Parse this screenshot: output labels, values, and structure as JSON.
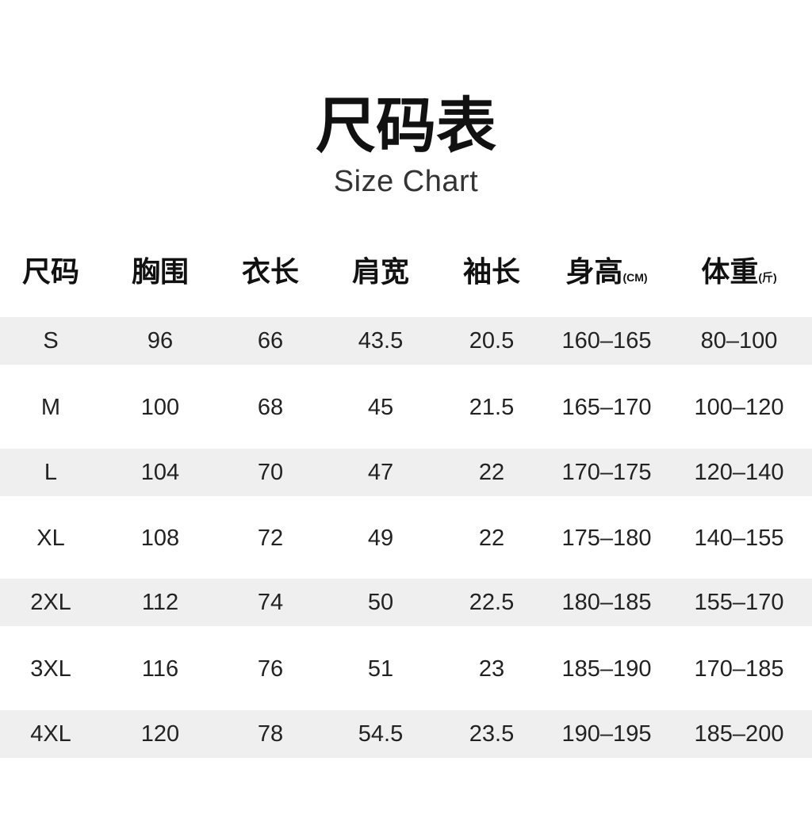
{
  "title": "尺码表",
  "subtitle": "Size Chart",
  "table": {
    "headers": [
      {
        "label": "尺码",
        "unit": ""
      },
      {
        "label": "胸围",
        "unit": ""
      },
      {
        "label": "衣长",
        "unit": ""
      },
      {
        "label": "肩宽",
        "unit": ""
      },
      {
        "label": "袖长",
        "unit": ""
      },
      {
        "label": "身高",
        "unit": "(CM)"
      },
      {
        "label": "体重",
        "unit": "(斤)"
      }
    ],
    "rows": [
      [
        "S",
        "96",
        "66",
        "43.5",
        "20.5",
        "160–165",
        "80–100"
      ],
      [
        "M",
        "100",
        "68",
        "45",
        "21.5",
        "165–170",
        "100–120"
      ],
      [
        "L",
        "104",
        "70",
        "47",
        "22",
        "170–175",
        "120–140"
      ],
      [
        "XL",
        "108",
        "72",
        "49",
        "22",
        "175–180",
        "140–155"
      ],
      [
        "2XL",
        "112",
        "74",
        "50",
        "22.5",
        "180–185",
        "155–170"
      ],
      [
        "3XL",
        "116",
        "76",
        "51",
        "23",
        "185–190",
        "170–185"
      ],
      [
        "4XL",
        "120",
        "78",
        "54.5",
        "23.5",
        "190–195",
        "185–200"
      ]
    ]
  },
  "colors": {
    "stripe": "#efefef",
    "text": "#222222"
  }
}
